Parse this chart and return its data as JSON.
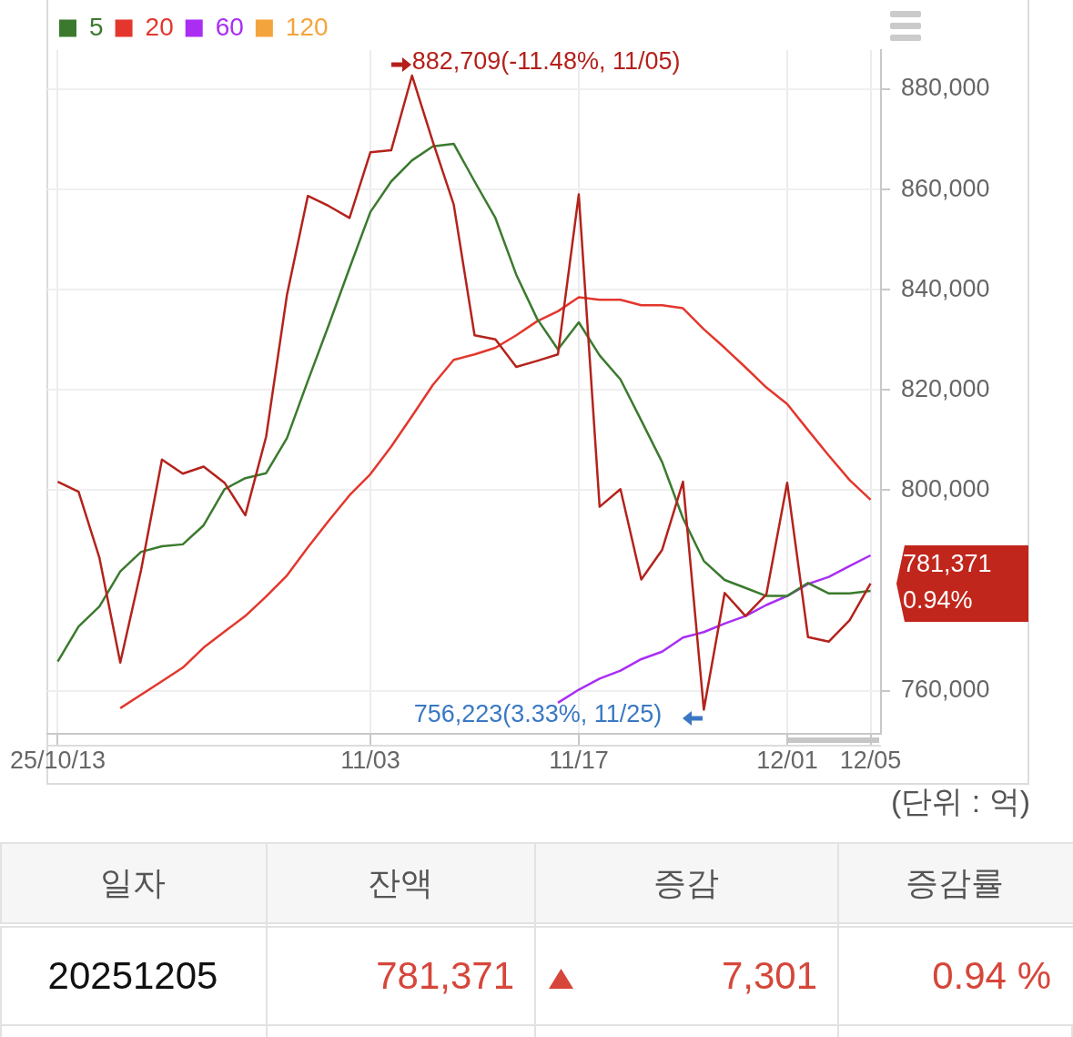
{
  "chart_data": {
    "type": "line",
    "categories": [
      "25/10/13",
      null,
      null,
      null,
      null,
      null,
      null,
      null,
      null,
      null,
      null,
      null,
      null,
      null,
      null,
      "11/03",
      null,
      null,
      null,
      null,
      null,
      null,
      null,
      null,
      null,
      "11/17",
      null,
      null,
      null,
      null,
      null,
      null,
      null,
      null,
      null,
      "12/01",
      null,
      null,
      null,
      "12/05"
    ],
    "series": [
      {
        "color": "#b3231c",
        "values": [
          801700,
          799700,
          786500,
          765600,
          784100,
          806100,
          803300,
          804700,
          801500,
          795000,
          810700,
          839000,
          858700,
          856700,
          854300,
          867400,
          867800,
          882709,
          869500,
          857000,
          830900,
          830100,
          824600,
          825800,
          827100,
          859000,
          796700,
          800200,
          782200,
          788100,
          801700,
          756223,
          779500,
          774900,
          779200,
          801500,
          770700,
          769800,
          774100,
          781371
        ]
      },
      {
        "name": "5",
        "color": "#3b7a2e",
        "values": [
          765800,
          772800,
          776800,
          783800,
          787700,
          788800,
          789200,
          793000,
          800200,
          802400,
          803400,
          810400,
          821800,
          832900,
          844300,
          855500,
          861600,
          865800,
          868600,
          869100,
          861600,
          854300,
          843000,
          834200,
          828100,
          833500,
          826900,
          822100,
          813900,
          805600,
          794400,
          785900,
          782100,
          780500,
          778900,
          778900,
          781500,
          779400,
          779400,
          779900
        ]
      },
      {
        "name": "20",
        "color": "#e3372d",
        "values": [
          null,
          null,
          null,
          756500,
          759200,
          761900,
          764600,
          768600,
          771800,
          774900,
          778800,
          783000,
          788600,
          793900,
          799000,
          803200,
          808700,
          814800,
          821000,
          826000,
          827100,
          828400,
          830900,
          833700,
          835700,
          838500,
          838000,
          838000,
          836900,
          836900,
          836300,
          832100,
          828400,
          824500,
          820500,
          817200,
          812000,
          806900,
          802000,
          798100
        ]
      },
      {
        "name": "60",
        "color": "#a92ef2",
        "values": [
          null,
          null,
          null,
          null,
          null,
          null,
          null,
          null,
          null,
          null,
          null,
          null,
          null,
          null,
          null,
          null,
          null,
          null,
          null,
          null,
          null,
          null,
          null,
          null,
          757600,
          760200,
          762400,
          764000,
          766300,
          767800,
          770600,
          771700,
          773400,
          774900,
          777100,
          778900,
          781300,
          782700,
          784900,
          787000
        ]
      },
      {
        "name": "120",
        "color": "#f4a43c",
        "values": [
          null,
          null,
          null,
          null,
          null,
          null,
          null,
          null,
          null,
          null,
          null,
          null,
          null,
          null,
          null,
          null,
          null,
          null,
          null,
          null,
          null,
          null,
          null,
          null,
          null,
          null,
          null,
          null,
          null,
          null,
          null,
          null,
          null,
          null,
          null,
          null,
          null,
          null,
          null,
          null
        ]
      }
    ],
    "ylim": [
      751400,
      887800
    ],
    "yticks": [
      {
        "value": 760000,
        "label": "760,000"
      },
      {
        "value": 800000,
        "label": "800,000"
      },
      {
        "value": 820000,
        "label": "820,000"
      },
      {
        "value": 840000,
        "label": "840,000"
      },
      {
        "value": 860000,
        "label": "860,000"
      },
      {
        "value": 880000,
        "label": "880,000"
      }
    ],
    "grid": true,
    "legend": "top left",
    "marker": "none",
    "annotations": [
      "882,709(-11.48%, 11/05)",
      "756,223(3.33%, 11/25)",
      "781,371",
      "0.94%",
      "(단위 : 억)",
      "일자",
      "잔액",
      "증감",
      "증감률",
      "20251205",
      "781,371",
      "7,301",
      "0.94 %"
    ]
  }
}
